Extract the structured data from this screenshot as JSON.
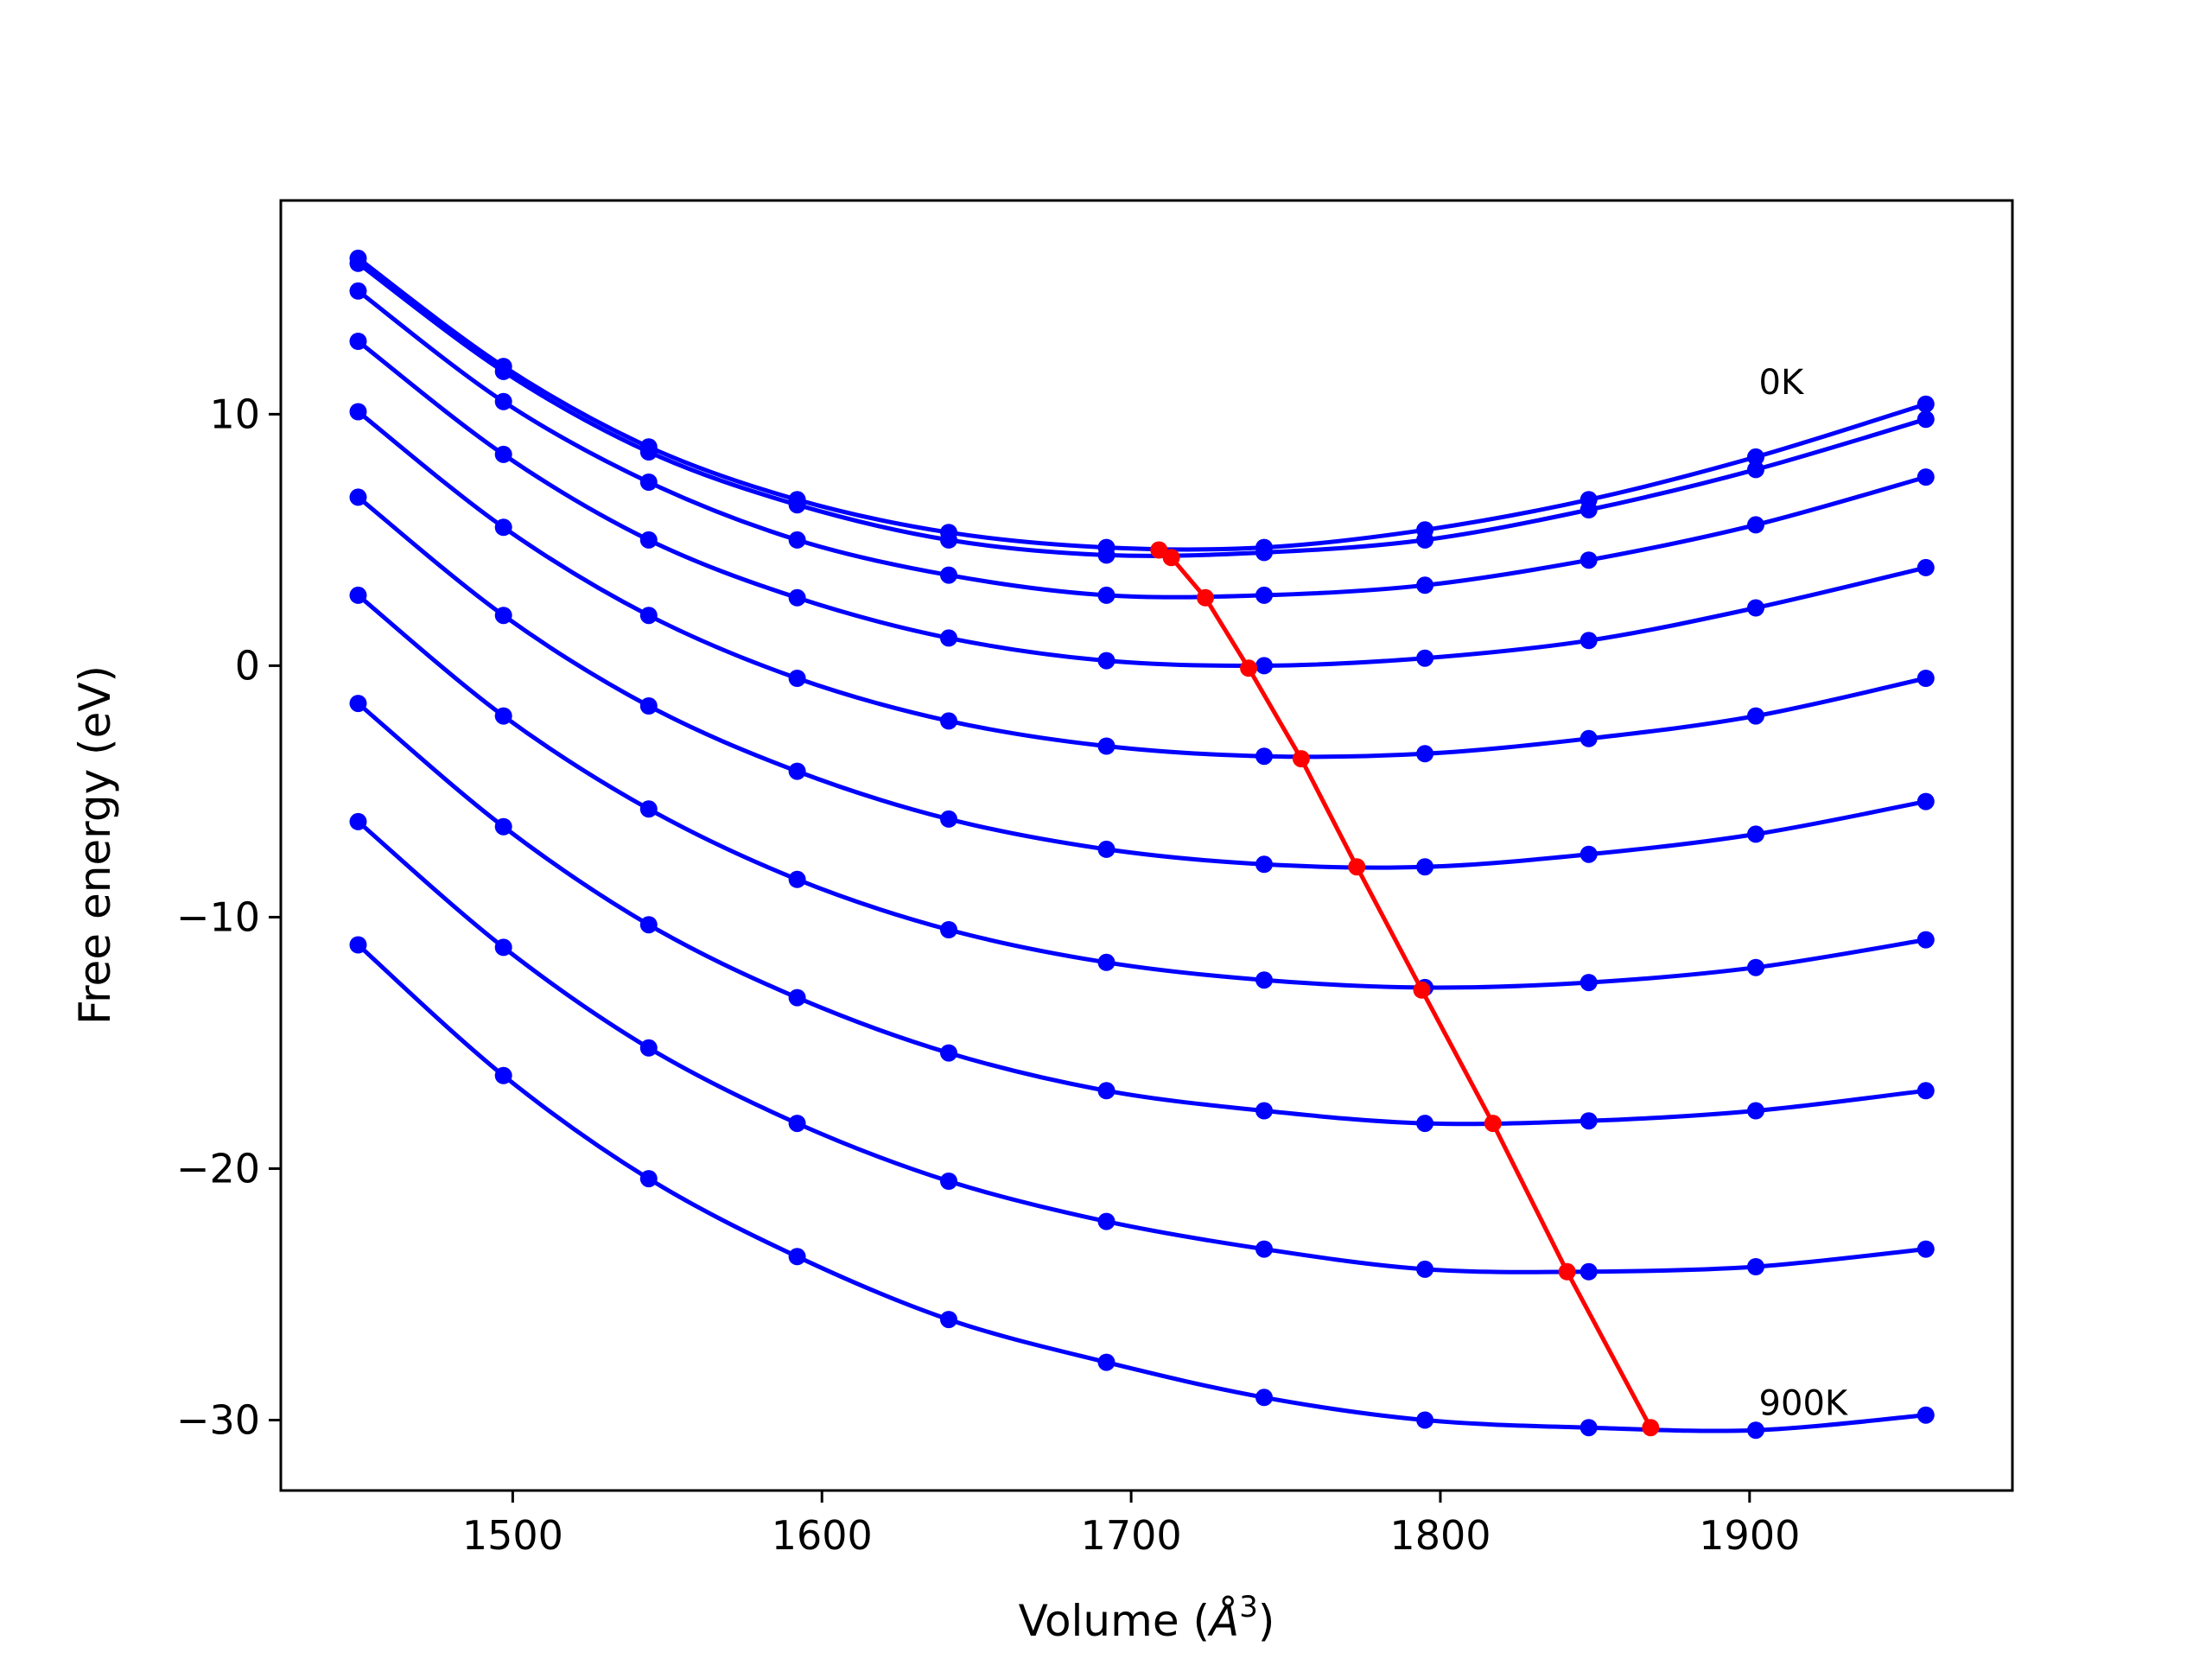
{
  "chart_data": {
    "type": "line",
    "xlabel": "Volume (",
    "xlabel_unit": "Å",
    "xlabel_sup": "3",
    "xlabel_close": ")",
    "ylabel": "Free energy (eV)",
    "xlim": [
      1425,
      1985
    ],
    "ylim": [
      -32.8,
      18.5
    ],
    "xticks": [
      1500,
      1600,
      1700,
      1800,
      1900
    ],
    "yticks": [
      -30,
      -20,
      -10,
      0,
      10
    ],
    "xtick_labels": [
      "1500",
      "1600",
      "1700",
      "1800",
      "1900"
    ],
    "ytick_labels": [
      "−30",
      "−20",
      "−10",
      "0",
      "10"
    ],
    "grid": false,
    "legend": "none",
    "annotations": [
      {
        "text": "0K",
        "x": 1903,
        "y": 10.8
      },
      {
        "text": "900K",
        "x": 1903,
        "y": -29.8
      }
    ],
    "colors": {
      "curves": "#0000ff",
      "minimum_line": "#ff0000",
      "axes": "#000000"
    },
    "x": [
      1450,
      1497,
      1544,
      1592,
      1641,
      1692,
      1743,
      1795,
      1848,
      1902,
      1957
    ],
    "series": [
      {
        "values": [
          16.2,
          11.9,
          8.7,
          6.6,
          5.3,
          4.7,
          4.7,
          5.4,
          6.6,
          8.3,
          10.4
        ]
      },
      {
        "values": [
          16.0,
          11.7,
          8.5,
          6.4,
          5.0,
          4.4,
          4.5,
          5.0,
          6.2,
          7.8,
          9.8
        ]
      },
      {
        "values": [
          14.9,
          10.5,
          7.3,
          5.0,
          3.6,
          2.8,
          2.8,
          3.2,
          4.2,
          5.6,
          7.5
        ]
      },
      {
        "values": [
          12.9,
          8.4,
          5.0,
          2.7,
          1.1,
          0.2,
          0.0,
          0.3,
          1.0,
          2.3,
          3.9
        ]
      },
      {
        "values": [
          10.1,
          5.5,
          2.0,
          -0.5,
          -2.2,
          -3.2,
          -3.6,
          -3.5,
          -2.9,
          -2.0,
          -0.5
        ]
      },
      {
        "values": [
          6.7,
          2.0,
          -1.6,
          -4.2,
          -6.1,
          -7.3,
          -7.9,
          -8.0,
          -7.5,
          -6.7,
          -5.4
        ]
      },
      {
        "values": [
          2.8,
          -2.0,
          -5.7,
          -8.5,
          -10.5,
          -11.8,
          -12.5,
          -12.8,
          -12.6,
          -12.0,
          -10.9
        ]
      },
      {
        "values": [
          -1.5,
          -6.4,
          -10.3,
          -13.2,
          -15.4,
          -16.9,
          -17.7,
          -18.2,
          -18.1,
          -17.7,
          -16.9
        ]
      },
      {
        "values": [
          -6.2,
          -11.2,
          -15.2,
          -18.2,
          -20.5,
          -22.1,
          -23.2,
          -24.0,
          -24.1,
          -23.9,
          -23.2
        ]
      },
      {
        "values": [
          -11.1,
          -16.3,
          -20.4,
          -23.5,
          -26.0,
          -27.7,
          -29.1,
          -30.0,
          -30.3,
          -30.4,
          -29.8
        ]
      }
    ],
    "minimum_line": {
      "x": [
        1709,
        1713,
        1724,
        1738,
        1755,
        1773,
        1794,
        1817,
        1841,
        1868
      ],
      "y": [
        4.6,
        4.3,
        2.7,
        -0.1,
        -3.7,
        -8.0,
        -12.9,
        -18.2,
        -24.1,
        -30.3
      ]
    }
  }
}
